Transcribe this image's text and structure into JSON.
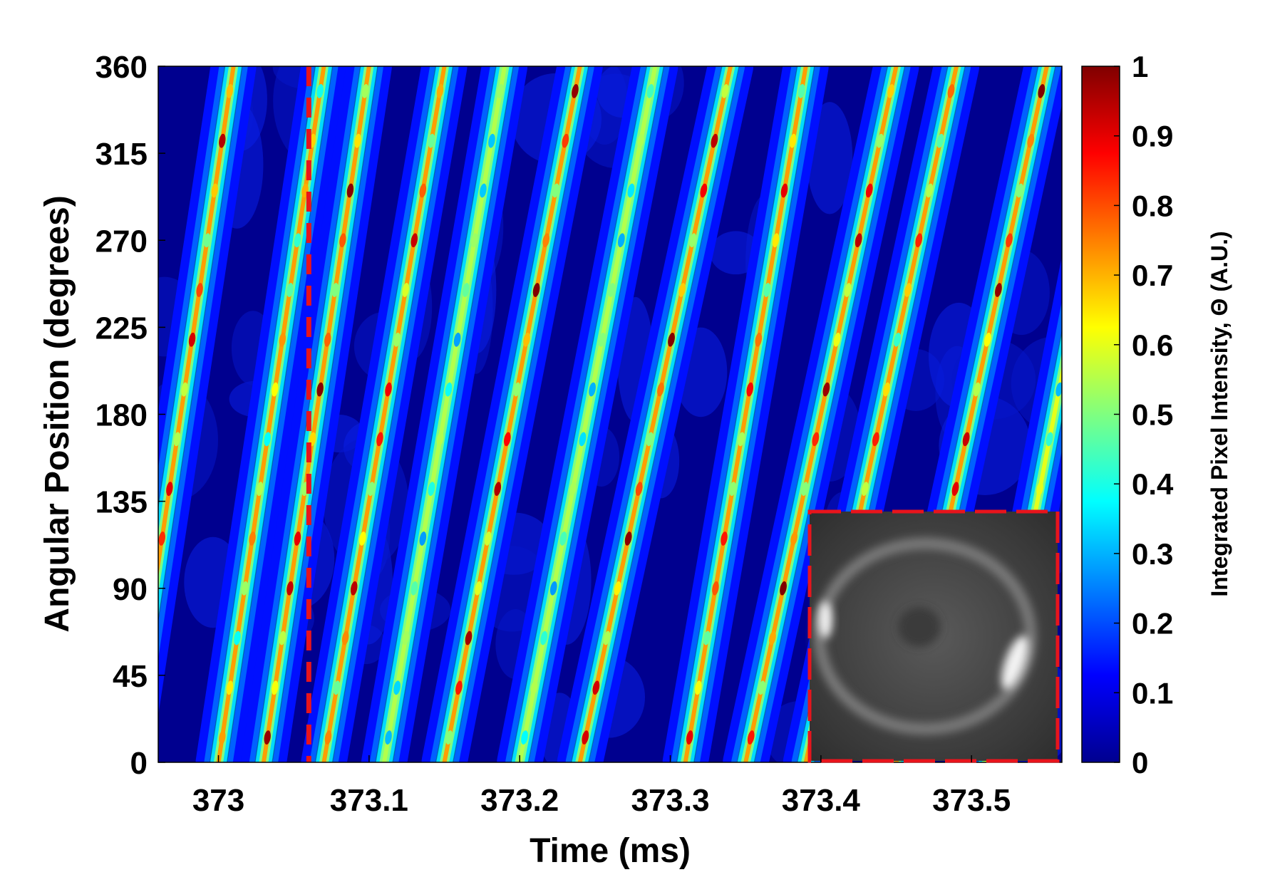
{
  "chart_data": {
    "type": "heatmap",
    "title": "",
    "xlabel": "Time (ms)",
    "ylabel": "Angular Position (degrees)",
    "colorbar_label": "Integrated Pixel Intensity, Θ (A.U.)",
    "xlim": [
      372.96,
      373.56
    ],
    "ylim": [
      0,
      360
    ],
    "clim": [
      0,
      1
    ],
    "x_ticks": [
      373,
      373.1,
      373.2,
      373.3,
      373.4,
      373.5
    ],
    "x_tick_labels": [
      "373",
      "373.1",
      "373.2",
      "373.3",
      "373.4",
      "373.5"
    ],
    "y_ticks": [
      0,
      45,
      90,
      135,
      180,
      225,
      270,
      315,
      360
    ],
    "y_tick_labels": [
      "0",
      "45",
      "90",
      "135",
      "180",
      "225",
      "270",
      "315",
      "360"
    ],
    "colorbar_ticks": [
      0,
      0.1,
      0.2,
      0.3,
      0.4,
      0.5,
      0.6,
      0.7,
      0.8,
      0.9,
      1
    ],
    "colorbar_tick_labels": [
      "0",
      "0.1",
      "0.2",
      "0.3",
      "0.4",
      "0.5",
      "0.6",
      "0.7",
      "0.8",
      "0.9",
      "1"
    ],
    "colormap": "jet",
    "marker_line": {
      "x": 373.06,
      "color": "#e8141c",
      "style": "dashed"
    },
    "streaks": [
      {
        "x0": 372.94,
        "x1": 373.01,
        "peak": 0.95
      },
      {
        "x0": 373.0,
        "x1": 373.07,
        "peak": 0.75
      },
      {
        "x0": 373.03,
        "x1": 373.1,
        "peak": 1.0
      },
      {
        "x0": 373.07,
        "x1": 373.15,
        "peak": 0.95
      },
      {
        "x0": 373.11,
        "x1": 373.19,
        "peak": 0.55
      },
      {
        "x0": 373.15,
        "x1": 373.24,
        "peak": 1.0
      },
      {
        "x0": 373.2,
        "x1": 373.29,
        "peak": 0.55
      },
      {
        "x0": 373.24,
        "x1": 373.34,
        "peak": 1.0
      },
      {
        "x0": 373.31,
        "x1": 373.39,
        "peak": 0.9
      },
      {
        "x0": 373.35,
        "x1": 373.45,
        "peak": 1.0
      },
      {
        "x0": 373.39,
        "x1": 373.49,
        "peak": 0.85
      },
      {
        "x0": 373.45,
        "x1": 373.55,
        "peak": 1.0
      },
      {
        "x0": 373.51,
        "x1": 373.6,
        "peak": 0.6
      }
    ],
    "inset": {
      "type": "grayscale-image",
      "border_color": "#e8141c",
      "border_style": "dashed",
      "position": "bottom-right"
    }
  },
  "colors": {
    "background": "#00008f",
    "marker": "#e8141c"
  }
}
